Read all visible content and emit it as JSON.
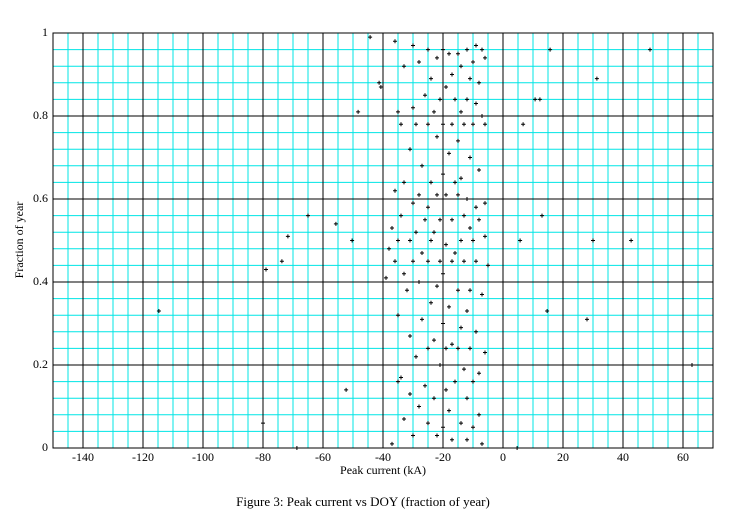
{
  "chart_data": {
    "type": "scatter",
    "xlabel": "Peak current (kA)",
    "ylabel": "Fraction of year",
    "caption": "Figure 3: Peak current vs DOY (fraction of year)",
    "color": "#000000",
    "grid": true,
    "grid_color": "#00e5e5",
    "xlim": [
      -150,
      70
    ],
    "ylim": [
      0,
      1
    ],
    "xticks": [
      -140,
      -120,
      -100,
      -80,
      -60,
      -40,
      -20,
      0,
      20,
      40,
      60
    ],
    "yticks": [
      0,
      0.2,
      0.4,
      0.6,
      0.8,
      1
    ],
    "xminor": [
      -145,
      -135,
      -130,
      -125,
      -115,
      -110,
      -105,
      -95,
      -90,
      -85,
      -75,
      -70,
      -65,
      -55,
      -50,
      -45,
      -35,
      -30,
      -25,
      -15,
      -10,
      -5,
      5,
      10,
      15,
      25,
      30,
      35,
      45,
      50,
      55,
      65
    ],
    "yminor": [
      0.04,
      0.08,
      0.12,
      0.16,
      0.24,
      0.28,
      0.32,
      0.36,
      0.44,
      0.48,
      0.52,
      0.56,
      0.64,
      0.68,
      0.72,
      0.76,
      0.84,
      0.88,
      0.92,
      0.96
    ],
    "x": [
      -36,
      -30,
      -25,
      -20,
      -15,
      -12,
      -9,
      -7,
      -18,
      -22,
      -33,
      -28,
      -14,
      -10,
      -6,
      -17,
      -11,
      -24,
      -8,
      -19,
      -26,
      -21,
      -16,
      -12,
      -9,
      -30,
      -35,
      -23,
      -14,
      -7,
      -34,
      -29,
      -25,
      -20,
      -17,
      -13,
      -10,
      -6,
      -22,
      -15,
      -31,
      -18,
      -11,
      -27,
      -8,
      -20,
      -14,
      -33,
      -24,
      -16,
      -36,
      -28,
      -22,
      -19,
      -15,
      -12,
      -30,
      -25,
      -9,
      -6,
      -34,
      -26,
      -21,
      -17,
      -13,
      -8,
      -37,
      -29,
      -23,
      -11,
      -35,
      -31,
      -24,
      -19,
      -14,
      -10,
      -6,
      -38,
      -27,
      -16,
      -36,
      -30,
      -25,
      -21,
      -17,
      -13,
      -9,
      -5,
      -33,
      -20,
      -39,
      -28,
      -22,
      -15,
      -11,
      -7,
      -32,
      -24,
      -18,
      -12,
      -35,
      -27,
      -20,
      -14,
      -9,
      -31,
      -23,
      -17,
      -25,
      -19,
      -15,
      -11,
      -6,
      -29,
      -21,
      -13,
      -8,
      -34,
      -16,
      -10,
      -26,
      -19,
      -35,
      -31,
      -23,
      -12,
      -28,
      -18,
      -8,
      -33,
      -25,
      -20,
      -14,
      -10,
      -30,
      -22,
      -17,
      -12,
      -7,
      -37,
      -114.7,
      -80,
      -68.7,
      -79,
      -73.7,
      -71.7,
      -65,
      -55.7,
      -52.3,
      -50.3,
      -48.3,
      -44.3,
      -41.3,
      -40.7,
      4.7,
      5.7,
      6.7,
      10.7,
      12.3,
      13,
      14.7,
      15.7,
      28,
      30,
      31.3,
      42.7,
      49,
      63
    ],
    "values": [
      0.98,
      0.97,
      0.96,
      0.96,
      0.95,
      0.96,
      0.97,
      0.96,
      0.95,
      0.94,
      0.92,
      0.93,
      0.92,
      0.93,
      0.94,
      0.9,
      0.89,
      0.89,
      0.88,
      0.87,
      0.85,
      0.84,
      0.84,
      0.84,
      0.83,
      0.82,
      0.81,
      0.81,
      0.81,
      0.8,
      0.78,
      0.78,
      0.78,
      0.78,
      0.78,
      0.78,
      0.78,
      0.78,
      0.75,
      0.74,
      0.72,
      0.71,
      0.7,
      0.68,
      0.67,
      0.66,
      0.65,
      0.64,
      0.64,
      0.64,
      0.62,
      0.61,
      0.61,
      0.61,
      0.61,
      0.6,
      0.59,
      0.58,
      0.58,
      0.59,
      0.56,
      0.55,
      0.55,
      0.55,
      0.56,
      0.55,
      0.53,
      0.52,
      0.52,
      0.53,
      0.5,
      0.5,
      0.5,
      0.49,
      0.5,
      0.5,
      0.51,
      0.48,
      0.47,
      0.47,
      0.45,
      0.45,
      0.45,
      0.45,
      0.45,
      0.45,
      0.45,
      0.44,
      0.42,
      0.42,
      0.41,
      0.4,
      0.39,
      0.38,
      0.38,
      0.37,
      0.38,
      0.35,
      0.34,
      0.33,
      0.32,
      0.31,
      0.3,
      0.29,
      0.28,
      0.27,
      0.26,
      0.25,
      0.24,
      0.24,
      0.24,
      0.24,
      0.23,
      0.22,
      0.2,
      0.19,
      0.18,
      0.17,
      0.16,
      0.16,
      0.15,
      0.14,
      0.16,
      0.13,
      0.12,
      0.12,
      0.1,
      0.09,
      0.08,
      0.07,
      0.06,
      0.05,
      0.06,
      0.05,
      0.03,
      0.03,
      0.02,
      0.02,
      0.01,
      0.01,
      0.33,
      0.06,
      0.0,
      0.43,
      0.45,
      0.51,
      0.56,
      0.54,
      0.14,
      0.5,
      0.81,
      0.99,
      0.88,
      0.87,
      0.0,
      0.5,
      0.78,
      0.84,
      0.84,
      0.56,
      0.33,
      0.96,
      0.31,
      0.5,
      0.89,
      0.5,
      0.96,
      0.2
    ]
  }
}
